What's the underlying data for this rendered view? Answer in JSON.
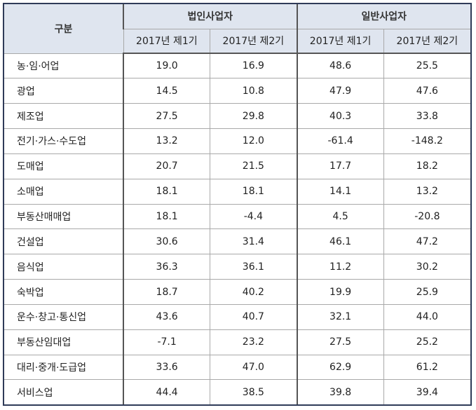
{
  "table": {
    "corner": "구분",
    "groups": [
      {
        "label": "법인사업자",
        "columns": [
          "2017년 제1기",
          "2017년 제2기"
        ]
      },
      {
        "label": "일반사업자",
        "columns": [
          "2017년 제1기",
          "2017년 제2기"
        ]
      }
    ],
    "rows": [
      {
        "label": "농·임·어업",
        "values": [
          "19.0",
          "16.9",
          "48.6",
          "25.5"
        ]
      },
      {
        "label": "광업",
        "values": [
          "14.5",
          "10.8",
          "47.9",
          "47.6"
        ]
      },
      {
        "label": "제조업",
        "values": [
          "27.5",
          "29.8",
          "40.3",
          "33.8"
        ]
      },
      {
        "label": "전기·가스·수도업",
        "values": [
          "13.2",
          "12.0",
          "-61.4",
          "-148.2"
        ]
      },
      {
        "label": "도매업",
        "values": [
          "20.7",
          "21.5",
          "17.7",
          "18.2"
        ]
      },
      {
        "label": "소매업",
        "values": [
          "18.1",
          "18.1",
          "14.1",
          "13.2"
        ]
      },
      {
        "label": "부동산매매업",
        "values": [
          "18.1",
          "-4.4",
          "4.5",
          "-20.8"
        ]
      },
      {
        "label": "건설업",
        "values": [
          "30.6",
          "31.4",
          "46.1",
          "47.2"
        ]
      },
      {
        "label": "음식업",
        "values": [
          "36.3",
          "36.1",
          "11.2",
          "30.2"
        ]
      },
      {
        "label": "숙박업",
        "values": [
          "18.7",
          "40.2",
          "19.9",
          "25.9"
        ]
      },
      {
        "label": "운수·창고·통신업",
        "values": [
          "43.6",
          "40.7",
          "32.1",
          "44.0"
        ]
      },
      {
        "label": "부동산임대업",
        "values": [
          "-7.1",
          "23.2",
          "27.5",
          "25.2"
        ]
      },
      {
        "label": "대리·중개·도급업",
        "values": [
          "33.6",
          "47.0",
          "62.9",
          "61.2"
        ]
      },
      {
        "label": "서비스업",
        "values": [
          "44.4",
          "38.5",
          "39.8",
          "39.4"
        ]
      }
    ]
  }
}
